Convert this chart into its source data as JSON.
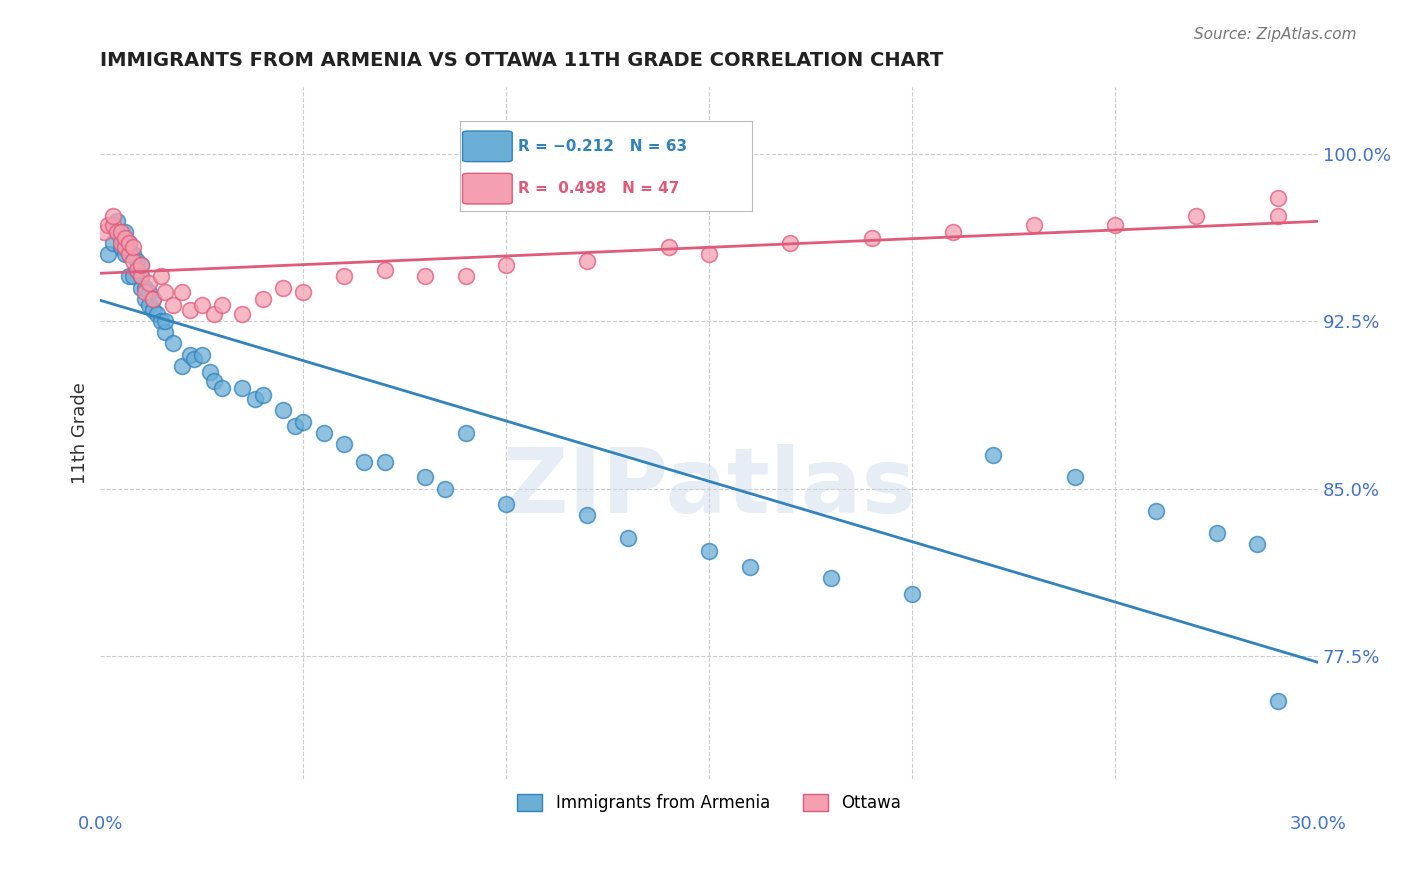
{
  "title": "IMMIGRANTS FROM ARMENIA VS OTTAWA 11TH GRADE CORRELATION CHART",
  "source": "Source: ZipAtlas.com",
  "ylabel": "11th Grade",
  "ylabel_ticks": [
    "77.5%",
    "85.0%",
    "92.5%",
    "100.0%"
  ],
  "ylabel_values": [
    0.775,
    0.85,
    0.925,
    1.0
  ],
  "xlim": [
    0.0,
    0.3
  ],
  "ylim": [
    0.72,
    1.03
  ],
  "blue_color": "#6baed6",
  "pink_color": "#f4a0b0",
  "blue_line_color": "#3182bd",
  "pink_line_color": "#e05a7a",
  "watermark": "ZIPatlas",
  "blue_x": [
    0.002,
    0.003,
    0.004,
    0.004,
    0.005,
    0.005,
    0.006,
    0.006,
    0.006,
    0.007,
    0.007,
    0.007,
    0.008,
    0.008,
    0.009,
    0.009,
    0.01,
    0.01,
    0.01,
    0.011,
    0.011,
    0.012,
    0.012,
    0.013,
    0.013,
    0.014,
    0.015,
    0.016,
    0.016,
    0.018,
    0.02,
    0.022,
    0.023,
    0.025,
    0.027,
    0.028,
    0.03,
    0.035,
    0.038,
    0.04,
    0.045,
    0.048,
    0.05,
    0.055,
    0.06,
    0.065,
    0.07,
    0.08,
    0.085,
    0.09,
    0.1,
    0.12,
    0.13,
    0.15,
    0.16,
    0.18,
    0.2,
    0.22,
    0.24,
    0.26,
    0.275,
    0.285,
    0.29
  ],
  "blue_y": [
    0.955,
    0.96,
    0.965,
    0.97,
    0.958,
    0.962,
    0.955,
    0.96,
    0.965,
    0.945,
    0.955,
    0.96,
    0.945,
    0.955,
    0.948,
    0.952,
    0.94,
    0.945,
    0.95,
    0.935,
    0.94,
    0.932,
    0.938,
    0.93,
    0.935,
    0.928,
    0.925,
    0.92,
    0.925,
    0.915,
    0.905,
    0.91,
    0.908,
    0.91,
    0.902,
    0.898,
    0.895,
    0.895,
    0.89,
    0.892,
    0.885,
    0.878,
    0.88,
    0.875,
    0.87,
    0.862,
    0.862,
    0.855,
    0.85,
    0.875,
    0.843,
    0.838,
    0.828,
    0.822,
    0.815,
    0.81,
    0.803,
    0.865,
    0.855,
    0.84,
    0.83,
    0.825,
    0.755
  ],
  "pink_x": [
    0.001,
    0.002,
    0.003,
    0.003,
    0.004,
    0.005,
    0.005,
    0.006,
    0.006,
    0.007,
    0.007,
    0.008,
    0.008,
    0.009,
    0.01,
    0.01,
    0.011,
    0.012,
    0.013,
    0.015,
    0.016,
    0.018,
    0.02,
    0.022,
    0.025,
    0.028,
    0.03,
    0.035,
    0.04,
    0.045,
    0.05,
    0.06,
    0.07,
    0.08,
    0.09,
    0.1,
    0.12,
    0.14,
    0.15,
    0.17,
    0.19,
    0.21,
    0.23,
    0.25,
    0.27,
    0.29,
    0.29
  ],
  "pink_y": [
    0.965,
    0.968,
    0.968,
    0.972,
    0.965,
    0.96,
    0.965,
    0.958,
    0.962,
    0.955,
    0.96,
    0.952,
    0.958,
    0.948,
    0.945,
    0.95,
    0.938,
    0.942,
    0.935,
    0.945,
    0.938,
    0.932,
    0.938,
    0.93,
    0.932,
    0.928,
    0.932,
    0.928,
    0.935,
    0.94,
    0.938,
    0.945,
    0.948,
    0.945,
    0.945,
    0.95,
    0.952,
    0.958,
    0.955,
    0.96,
    0.962,
    0.965,
    0.968,
    0.968,
    0.972,
    0.98,
    0.972
  ]
}
